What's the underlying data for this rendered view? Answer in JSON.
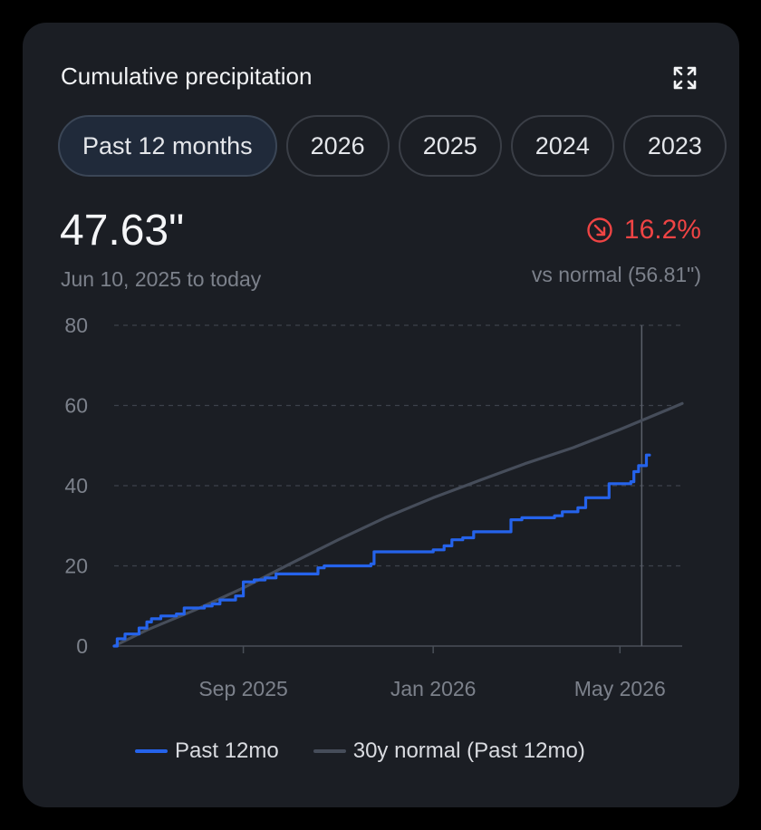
{
  "card": {
    "title": "Cumulative precipitation",
    "expand_icon": "expand-arrows-icon"
  },
  "tabs": [
    "Past 12 months",
    "2026",
    "2025",
    "2024",
    "2023"
  ],
  "active_tab": "Past 12 months",
  "summary": {
    "total": "47.63\"",
    "range": "Jun 10, 2025 to today",
    "delta": "16.2%",
    "delta_direction": "down",
    "delta_icon": "arrow-down-right-circle-icon",
    "normal_text": "vs normal (56.81\")"
  },
  "colors": {
    "series_past": "#2563eb",
    "series_normal": "#464d5a",
    "negative": "#ef4444"
  },
  "chart_data": {
    "type": "line",
    "ylim": [
      0,
      80
    ],
    "y_ticks": [
      0,
      20,
      40,
      60,
      80
    ],
    "x_range": [
      "2025-06-10",
      "2026-06-10"
    ],
    "x_ticks": [
      {
        "date": "2025-09-01",
        "label": "Sep 2025"
      },
      {
        "date": "2026-01-01",
        "label": "Jan 2026"
      },
      {
        "date": "2026-05-01",
        "label": "May 2026"
      }
    ],
    "today": "2026-05-15",
    "grid": true,
    "legend_position": "bottom",
    "series": [
      {
        "name": "Past 12mo",
        "step": true,
        "points": [
          [
            "2025-06-10",
            0
          ],
          [
            "2025-06-12",
            1.8
          ],
          [
            "2025-06-17",
            3.0
          ],
          [
            "2025-06-26",
            4.5
          ],
          [
            "2025-07-01",
            6.0
          ],
          [
            "2025-07-04",
            6.8
          ],
          [
            "2025-07-10",
            7.5
          ],
          [
            "2025-07-20",
            8.0
          ],
          [
            "2025-07-25",
            9.5
          ],
          [
            "2025-08-07",
            10.0
          ],
          [
            "2025-08-12",
            10.5
          ],
          [
            "2025-08-17",
            11.5
          ],
          [
            "2025-08-27",
            12.5
          ],
          [
            "2025-09-01",
            16.0
          ],
          [
            "2025-09-08",
            16.5
          ],
          [
            "2025-09-15",
            17.0
          ],
          [
            "2025-09-22",
            18.0
          ],
          [
            "2025-10-19",
            19.5
          ],
          [
            "2025-10-23",
            20.0
          ],
          [
            "2025-11-22",
            20.5
          ],
          [
            "2025-11-24",
            23.5
          ],
          [
            "2026-01-01",
            24.0
          ],
          [
            "2026-01-08",
            25.0
          ],
          [
            "2026-01-13",
            26.5
          ],
          [
            "2026-01-20",
            27.0
          ],
          [
            "2026-01-27",
            28.5
          ],
          [
            "2026-02-20",
            31.5
          ],
          [
            "2026-02-27",
            32.0
          ],
          [
            "2026-03-20",
            32.5
          ],
          [
            "2026-03-25",
            33.5
          ],
          [
            "2026-04-04",
            34.5
          ],
          [
            "2026-04-09",
            37.0
          ],
          [
            "2026-04-24",
            40.5
          ],
          [
            "2026-05-08",
            41.0
          ],
          [
            "2026-05-10",
            43.5
          ],
          [
            "2026-05-13",
            45.0
          ],
          [
            "2026-05-18",
            47.63
          ],
          [
            "2026-05-20",
            47.63
          ]
        ]
      },
      {
        "name": "30y normal (Past 12mo)",
        "step": false,
        "points": [
          [
            "2025-06-10",
            0
          ],
          [
            "2025-07-01",
            4.0
          ],
          [
            "2025-08-01",
            9.0
          ],
          [
            "2025-09-01",
            14.5
          ],
          [
            "2025-10-01",
            20.5
          ],
          [
            "2025-11-01",
            26.5
          ],
          [
            "2025-12-01",
            32.0
          ],
          [
            "2026-01-01",
            37.0
          ],
          [
            "2026-02-01",
            41.5
          ],
          [
            "2026-03-01",
            45.5
          ],
          [
            "2026-04-01",
            49.5
          ],
          [
            "2026-05-01",
            54.0
          ],
          [
            "2026-06-01",
            59.0
          ],
          [
            "2026-06-10",
            60.5
          ]
        ]
      }
    ]
  }
}
